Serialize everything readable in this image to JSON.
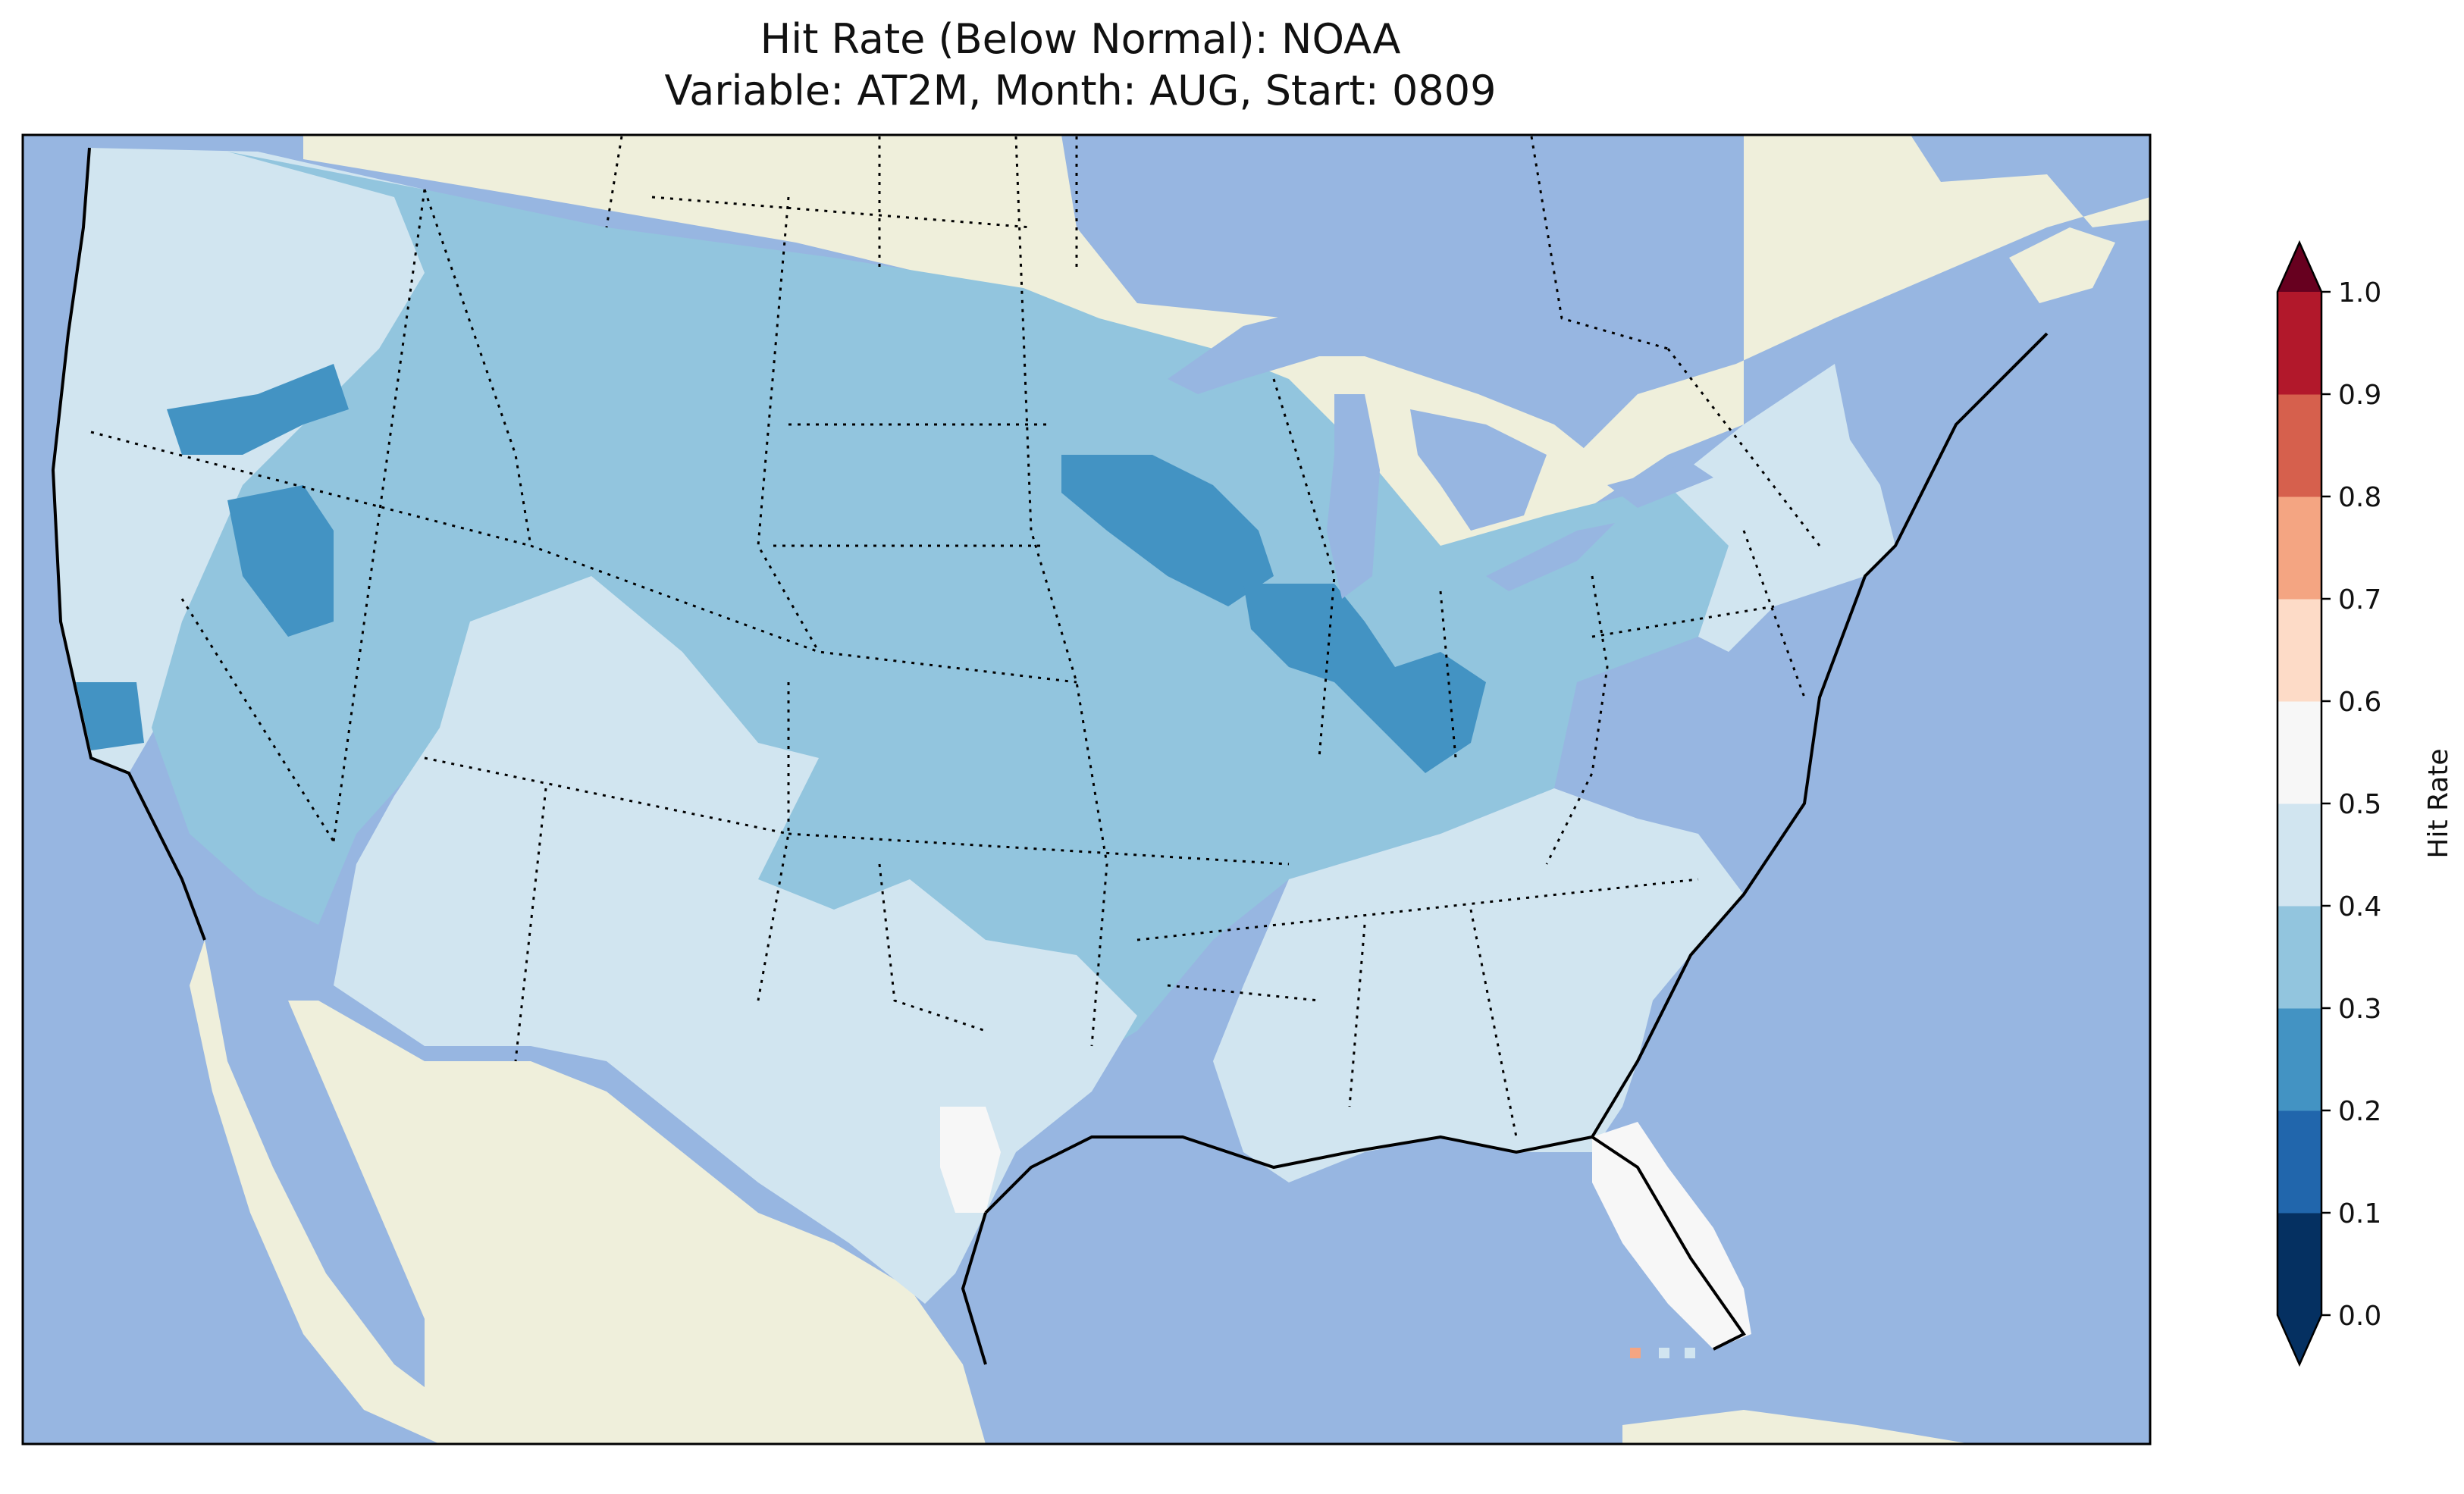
{
  "title_line1": "Hit Rate (Below Normal): NOAA",
  "title_line2": "Variable: AT2M, Month: AUG, Start: 0809",
  "colorbar": {
    "label": "Hit Rate",
    "ticks": [
      "0.0",
      "0.1",
      "0.2",
      "0.3",
      "0.4",
      "0.5",
      "0.6",
      "0.7",
      "0.8",
      "0.9",
      "1.0"
    ],
    "bins": [
      {
        "range": [
          0.0,
          0.1
        ],
        "color": "#053061"
      },
      {
        "range": [
          0.1,
          0.2
        ],
        "color": "#2166ac"
      },
      {
        "range": [
          0.2,
          0.3
        ],
        "color": "#4393c3"
      },
      {
        "range": [
          0.3,
          0.4
        ],
        "color": "#92c5de"
      },
      {
        "range": [
          0.4,
          0.5
        ],
        "color": "#d1e5f0"
      },
      {
        "range": [
          0.5,
          0.6
        ],
        "color": "#f7f7f7"
      },
      {
        "range": [
          0.6,
          0.7
        ],
        "color": "#fddbc7"
      },
      {
        "range": [
          0.7,
          0.8
        ],
        "color": "#f4a582"
      },
      {
        "range": [
          0.8,
          0.9
        ],
        "color": "#d6604d"
      },
      {
        "range": [
          0.9,
          1.0
        ],
        "color": "#b2182b"
      }
    ],
    "extend_low_color": "#053061",
    "extend_high_color": "#67001f"
  },
  "map_colors": {
    "ocean": "#97b6e1",
    "land": "#efefdb",
    "coast": "#000000"
  },
  "regions": [
    {
      "name": "west-coast-oregon-washington",
      "value": 0.45
    },
    {
      "name": "interior-west-plains-midwest",
      "value": 0.35
    },
    {
      "name": "southwest-rockies-texas",
      "value": 0.45
    },
    {
      "name": "southeast",
      "value": 0.45
    },
    {
      "name": "northeast",
      "value": 0.45
    },
    {
      "name": "oregon-nevada-patch",
      "value": 0.25
    },
    {
      "name": "upper-mississippi-patch",
      "value": 0.25
    },
    {
      "name": "illinois-indiana-patch",
      "value": 0.25
    },
    {
      "name": "central-texas-patch",
      "value": 0.55
    },
    {
      "name": "florida",
      "value": 0.55
    }
  ]
}
